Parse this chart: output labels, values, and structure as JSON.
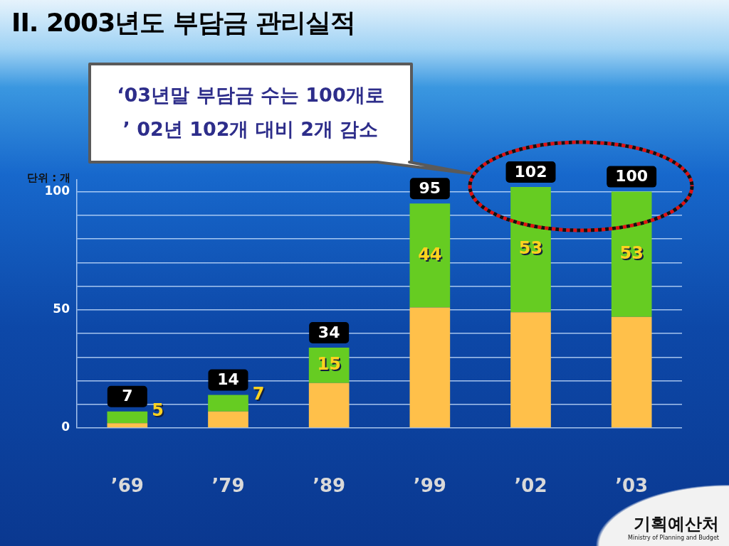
{
  "chart_data": {
    "type": "bar",
    "title": "II. 2003년도 부담금 관리실적",
    "ylabel": "단위 : 개",
    "categories": [
      "’69",
      "’79",
      "’89",
      "’99",
      "’02",
      "’03"
    ],
    "series": [
      {
        "color": "#ffc04a",
        "values": [
          2,
          7,
          19,
          51,
          49,
          47
        ]
      },
      {
        "color": "#66cc22",
        "values": [
          5,
          7,
          15,
          44,
          53,
          53
        ],
        "value_labels": [
          "5",
          "7",
          "15",
          "44",
          "53",
          "53"
        ]
      }
    ],
    "stacked": true,
    "totals": [
      "7",
      "14",
      "34",
      "95",
      "102",
      "100"
    ],
    "ylim": [
      0,
      105
    ],
    "yticks": [
      0,
      {
        "value": 10,
        "label": null
      },
      {
        "value": 20,
        "label": null
      },
      {
        "value": 30,
        "label": null
      },
      {
        "value": 40,
        "label": null
      },
      50,
      {
        "value": 60,
        "label": null
      },
      {
        "value": 70,
        "label": null
      },
      {
        "value": 80,
        "label": null
      },
      {
        "value": 90,
        "label": null
      },
      100
    ],
    "grid": "y",
    "annotations": [
      "‘03년말 부담금 수는 100개로",
      "’ 02년 102개 대비 2개 감소",
      "기획예산처",
      "Ministry of Planning and Budget"
    ]
  }
}
